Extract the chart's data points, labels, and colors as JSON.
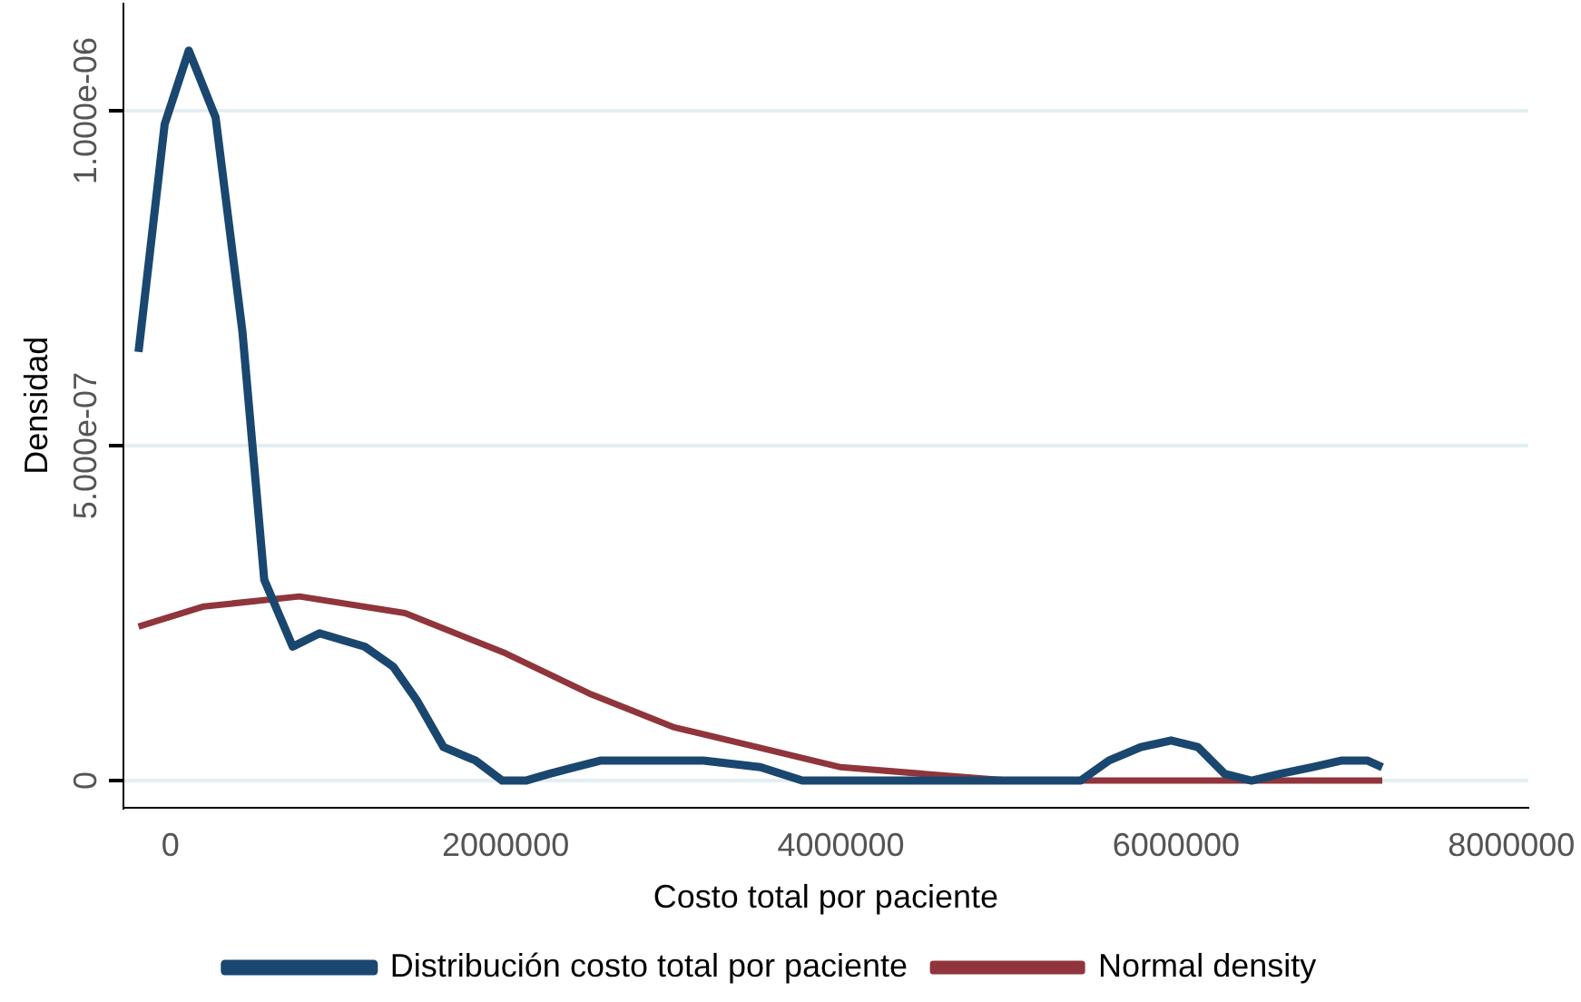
{
  "chart_data": {
    "type": "line",
    "xlabel": "Costo total por paciente",
    "ylabel": "Densidad",
    "xlim": [
      -280000,
      8100000
    ],
    "xticks": [
      0,
      2000000,
      4000000,
      6000000,
      8000000
    ],
    "ylim": [
      -4e-08,
      1.16e-06
    ],
    "yticks": [
      0,
      {
        "value": 5e-07,
        "label": "5.000e-07"
      },
      {
        "value": 1e-06,
        "label": "1.000e-06"
      }
    ],
    "grid": "y",
    "legend": "bottom",
    "marker": "none",
    "line_style": "solid",
    "series": [
      {
        "name": "Distribución costo total por paciente",
        "color": "#1a476f",
        "x": [
          -190000,
          -34000,
          110000,
          270000,
          430000,
          560000,
          730000,
          890000,
          1160000,
          1330000,
          1470000,
          1630000,
          1820000,
          1980000,
          2120000,
          2260000,
          2410000,
          2570000,
          2900000,
          3180000,
          3520000,
          3770000,
          4310000,
          4980000,
          5430000,
          5600000,
          5790000,
          5970000,
          6130000,
          6290000,
          6450000,
          6620000,
          6810000,
          6990000,
          7140000,
          7230000
        ],
        "values": [
          6.4e-07,
          9.8e-07,
          1.09e-06,
          9.9e-07,
          6.7e-07,
          3e-07,
          2e-07,
          2.2e-07,
          2e-07,
          1.7e-07,
          1.2e-07,
          5e-08,
          3e-08,
          0,
          0,
          1e-08,
          2e-08,
          3e-08,
          3e-08,
          3e-08,
          2e-08,
          0,
          0,
          0,
          0,
          3e-08,
          5e-08,
          6e-08,
          5e-08,
          1e-08,
          0,
          1e-08,
          2e-08,
          3e-08,
          3e-08,
          2e-08
        ]
      },
      {
        "name": "Normal density",
        "color": "#90353b",
        "x": [
          -190000,
          200000,
          770000,
          1400000,
          2000000,
          2500000,
          3000000,
          3500000,
          4000000,
          4500000,
          5000000,
          6000000,
          7230000
        ],
        "values": [
          2.3e-07,
          2.6e-07,
          2.75e-07,
          2.5e-07,
          1.9e-07,
          1.3e-07,
          8e-08,
          5e-08,
          2e-08,
          1e-08,
          0,
          0,
          0
        ]
      }
    ]
  }
}
